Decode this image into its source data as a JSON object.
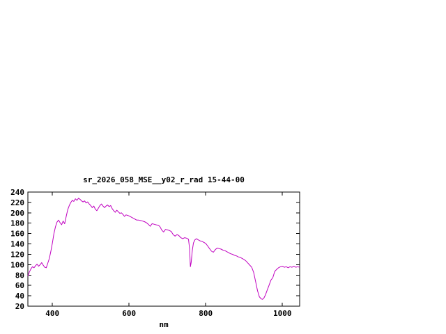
{
  "window": {
    "background": "#ffffff"
  },
  "chart_data": {
    "type": "line",
    "title": "sr_2026_058_MSE__y02_r_rad 15-44-00",
    "xlabel": "nm",
    "ylabel": "",
    "xlim": [
      336,
      1045
    ],
    "ylim": [
      20,
      240
    ],
    "x_ticks": [
      400,
      600,
      800,
      1000
    ],
    "y_ticks": [
      20,
      40,
      60,
      80,
      100,
      120,
      140,
      160,
      180,
      200,
      220,
      240
    ],
    "grid": false,
    "legend": "none",
    "line_color": "#c000c0",
    "series": [
      {
        "name": "sr_2026_058_MSE__y02_r_rad",
        "x": [
          336,
          340,
          344,
          348,
          352,
          356,
          360,
          364,
          368,
          372,
          376,
          380,
          384,
          388,
          392,
          396,
          400,
          404,
          408,
          412,
          416,
          420,
          424,
          428,
          432,
          436,
          440,
          444,
          448,
          452,
          456,
          460,
          464,
          468,
          472,
          476,
          480,
          484,
          488,
          492,
          496,
          500,
          504,
          508,
          512,
          516,
          520,
          524,
          528,
          532,
          536,
          540,
          544,
          548,
          552,
          556,
          560,
          564,
          568,
          572,
          576,
          580,
          584,
          588,
          592,
          596,
          600,
          605,
          610,
          615,
          620,
          625,
          630,
          635,
          640,
          645,
          650,
          655,
          660,
          665,
          670,
          675,
          680,
          685,
          690,
          695,
          700,
          705,
          710,
          715,
          720,
          725,
          730,
          735,
          740,
          745,
          750,
          755,
          758,
          760,
          762,
          765,
          768,
          772,
          776,
          780,
          785,
          790,
          795,
          800,
          805,
          810,
          815,
          820,
          825,
          830,
          835,
          840,
          845,
          850,
          855,
          860,
          865,
          870,
          875,
          880,
          885,
          890,
          895,
          900,
          905,
          910,
          915,
          920,
          925,
          930,
          935,
          940,
          945,
          948,
          952,
          956,
          960,
          965,
          970,
          975,
          980,
          985,
          990,
          995,
          1000,
          1005,
          1010,
          1015,
          1020,
          1025,
          1030,
          1035,
          1040,
          1045
        ],
        "values": [
          78,
          86,
          92,
          96,
          94,
          98,
          101,
          97,
          100,
          104,
          99,
          95,
          94,
          103,
          112,
          126,
          142,
          160,
          173,
          182,
          186,
          181,
          177,
          184,
          179,
          193,
          206,
          214,
          220,
          224,
          222,
          227,
          224,
          228,
          226,
          223,
          221,
          223,
          219,
          221,
          217,
          214,
          210,
          213,
          207,
          204,
          209,
          214,
          217,
          213,
          210,
          213,
          215,
          212,
          214,
          208,
          204,
          201,
          205,
          202,
          199,
          200,
          197,
          193,
          196,
          195,
          194,
          192,
          190,
          188,
          186,
          186,
          185,
          184,
          183,
          181,
          178,
          174,
          179,
          178,
          177,
          176,
          174,
          167,
          163,
          168,
          167,
          166,
          164,
          158,
          155,
          158,
          156,
          152,
          150,
          152,
          151,
          149,
          130,
          96,
          104,
          128,
          142,
          148,
          150,
          148,
          146,
          145,
          143,
          141,
          136,
          131,
          126,
          124,
          129,
          132,
          131,
          130,
          128,
          127,
          125,
          123,
          121,
          120,
          118,
          117,
          115,
          114,
          112,
          110,
          107,
          103,
          99,
          95,
          85,
          68,
          50,
          38,
          34,
          33,
          36,
          42,
          50,
          60,
          70,
          75,
          87,
          91,
          94,
          96,
          97,
          95,
          96,
          94,
          96,
          95,
          97,
          95,
          96,
          95
        ]
      }
    ]
  }
}
